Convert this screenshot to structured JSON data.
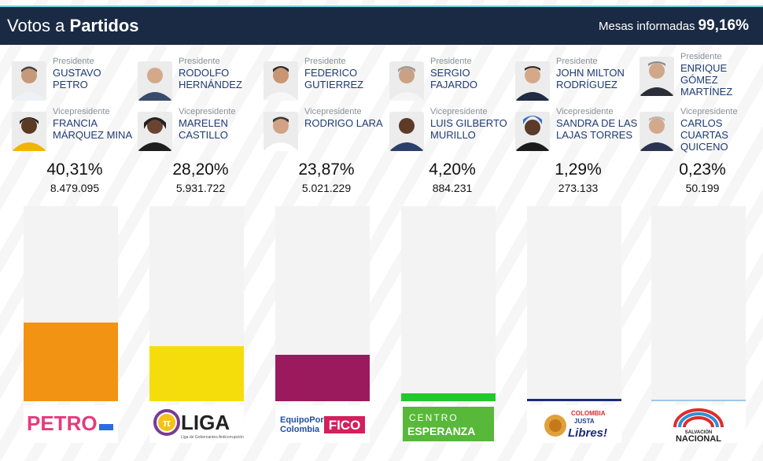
{
  "header": {
    "title_regular": "Votos a",
    "title_bold": "Partidos",
    "mesas_label": "Mesas informadas",
    "mesas_value": "99,16%"
  },
  "labels": {
    "presidente": "Presidente",
    "vicepresidente": "Vicepresidente"
  },
  "parties": [
    {
      "president": "GUSTAVO PETRO",
      "vice": "FRANCIA MÁRQUEZ MINA",
      "percent": "40,31%",
      "votes": "8.479.095",
      "bar_fraction": 0.403,
      "bar_color": "#f39313",
      "logo_text": "PETRO"
    },
    {
      "president": "RODOLFO HERNÁNDEZ",
      "vice": "MARELEN CASTILLO",
      "percent": "28,20%",
      "votes": "5.931.722",
      "bar_fraction": 0.282,
      "bar_color": "#f5dd0c",
      "logo_text": "LIGA",
      "logo_subtext": "Liga de Gobernantes Anticorrupción"
    },
    {
      "president": "FEDERICO GUTIERREZ",
      "vice": "RODRIGO LARA",
      "percent": "23,87%",
      "votes": "5.021.229",
      "bar_fraction": 0.239,
      "bar_color": "#9b1a5e",
      "logo_text_a": "EquipoPor",
      "logo_text_b": "Colombia",
      "logo_text_c": "FICO"
    },
    {
      "president": "SERGIO FAJARDO",
      "vice": "LUIS GILBERTO MURILLO",
      "percent": "4,20%",
      "votes": "884.231",
      "bar_fraction": 0.042,
      "bar_color": "#22c92a",
      "logo_text_a": "CENTRO",
      "logo_text_b": "ESPERANZA"
    },
    {
      "president": "JOHN MILTON RODRÍGUEZ",
      "vice": "SANDRA DE LAS LAJAS TORRES",
      "percent": "1,29%",
      "votes": "273.133",
      "bar_fraction": 0.0129,
      "bar_color": "#1c2c78",
      "logo_text_a": "COLOMBIA",
      "logo_text_b": "JUSTA",
      "logo_text_c": "Libres!"
    },
    {
      "president": "ENRIQUE GÓMEZ MARTÍNEZ",
      "vice": "CARLOS CUARTAS QUICENO",
      "percent": "0,23%",
      "votes": "50.199",
      "bar_fraction": 0.0023,
      "bar_color": "#9ec7e8",
      "logo_text_a": "SALVACIÓN",
      "logo_text_b": "NACIONAL"
    }
  ]
}
